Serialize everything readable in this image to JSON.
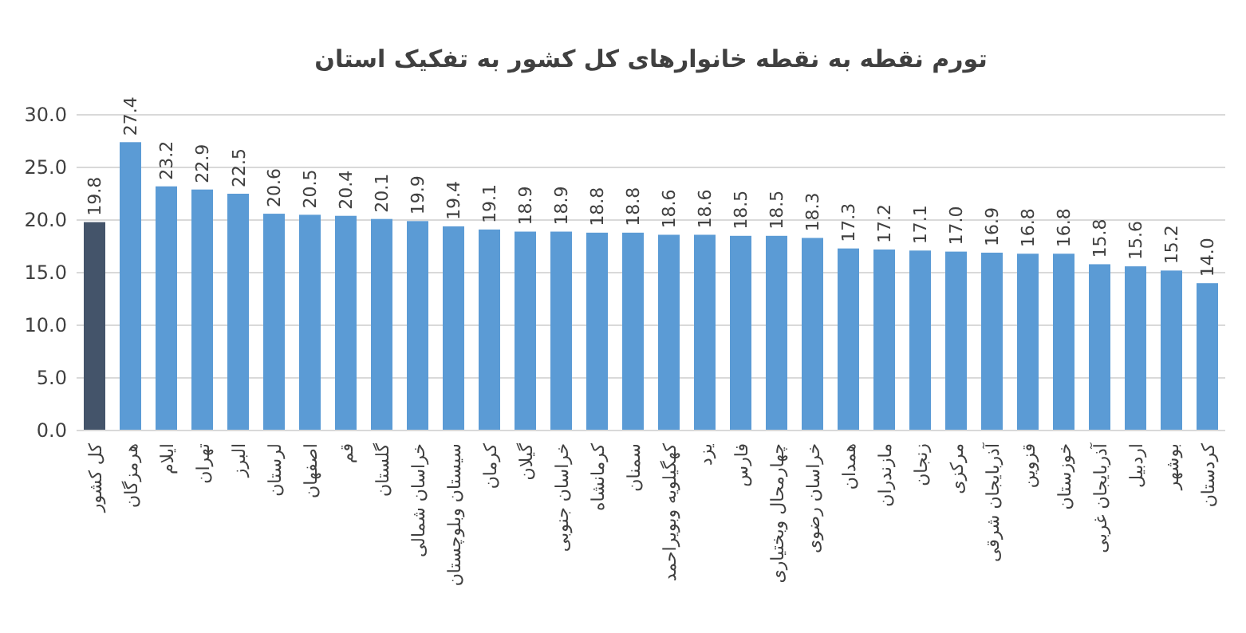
{
  "chart_data": {
    "type": "bar",
    "title": "تورم  نقطه به نقطه خانوارهای کل کشور به تفکیک استان",
    "categories": [
      "کل کشور",
      "هرمزگان",
      "ایلام",
      "تهران",
      "البرز",
      "لرستان",
      "اصفهان",
      "قم",
      "گلستان",
      "خراسان شمالی",
      "سیستان وبلوچستان",
      "کرمان",
      "گیلان",
      "خراسان جنوبی",
      "کرمانشاه",
      "سمنان",
      "کهگیلویه وبویراحمد",
      "یزد",
      "فارس",
      "چهارمحال وبختیاری",
      "خراسان رضوی",
      "همدان",
      "مازندران",
      "زنجان",
      "مرکزی",
      "آذربایجان شرقی",
      "قزوین",
      "خوزستان",
      "آذربایجان غربی",
      "اردبیل",
      "بوشهر",
      "کردستان"
    ],
    "values": [
      19.8,
      27.4,
      23.2,
      22.9,
      22.5,
      20.6,
      20.5,
      20.4,
      20.1,
      19.9,
      19.4,
      19.1,
      18.9,
      18.9,
      18.8,
      18.8,
      18.6,
      18.6,
      18.5,
      18.5,
      18.3,
      17.3,
      17.2,
      17.1,
      17.0,
      16.9,
      16.8,
      16.8,
      15.8,
      15.6,
      15.2,
      14.0
    ],
    "value_labels": [
      "19.8",
      "27.4",
      "23.2",
      "22.9",
      "22.5",
      "20.6",
      "20.5",
      "20.4",
      "20.1",
      "19.9",
      "19.4",
      "19.1",
      "18.9",
      "18.9",
      "18.8",
      "18.8",
      "18.6",
      "18.6",
      "18.5",
      "18.5",
      "18.3",
      "17.3",
      "17.2",
      "17.1",
      "17.0",
      "16.9",
      "16.8",
      "16.8",
      "15.8",
      "15.6",
      "15.2",
      "14.0"
    ],
    "colors": [
      "#44546a",
      "#5b9bd5",
      "#5b9bd5",
      "#5b9bd5",
      "#5b9bd5",
      "#5b9bd5",
      "#5b9bd5",
      "#5b9bd5",
      "#5b9bd5",
      "#5b9bd5",
      "#5b9bd5",
      "#5b9bd5",
      "#5b9bd5",
      "#5b9bd5",
      "#5b9bd5",
      "#5b9bd5",
      "#5b9bd5",
      "#5b9bd5",
      "#5b9bd5",
      "#5b9bd5",
      "#5b9bd5",
      "#5b9bd5",
      "#5b9bd5",
      "#5b9bd5",
      "#5b9bd5",
      "#5b9bd5",
      "#5b9bd5",
      "#5b9bd5",
      "#5b9bd5",
      "#5b9bd5",
      "#5b9bd5",
      "#5b9bd5"
    ],
    "ylim": [
      0,
      30
    ],
    "yticks": [
      {
        "value": 0,
        "label": "0.0"
      },
      {
        "value": 5,
        "label": "5.0"
      },
      {
        "value": 10,
        "label": "10.0"
      },
      {
        "value": 15,
        "label": "15.0"
      },
      {
        "value": 20,
        "label": "20.0"
      },
      {
        "value": 25,
        "label": "25.0"
      },
      {
        "value": 30,
        "label": "30.0"
      }
    ],
    "grid": "y"
  }
}
